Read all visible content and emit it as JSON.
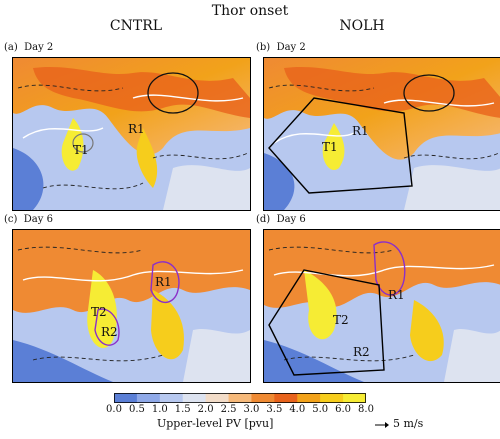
{
  "figure": {
    "title": "Thor onset",
    "columns": [
      "CNTRL",
      "NOLH"
    ],
    "panels": [
      {
        "id": "a",
        "label": "(a)",
        "day": "Day 2",
        "regions": [
          "R1",
          "T1"
        ],
        "box": false
      },
      {
        "id": "b",
        "label": "(b)",
        "day": "Day 2",
        "regions": [
          "R1",
          "T1"
        ],
        "box": true
      },
      {
        "id": "c",
        "label": "(c)",
        "day": "Day 6",
        "regions": [
          "R1",
          "R2",
          "T2"
        ],
        "box": false
      },
      {
        "id": "d",
        "label": "(d)",
        "day": "Day 6",
        "regions": [
          "R1",
          "R2",
          "T2"
        ],
        "box": true
      }
    ]
  },
  "colorbar": {
    "ticks": [
      "0.0",
      "0.5",
      "1.0",
      "1.5",
      "2.0",
      "2.5",
      "3.0",
      "3.5",
      "4.0",
      "5.0",
      "6.0",
      "8.0"
    ],
    "colors": [
      "#5b7fd6",
      "#8fa9e8",
      "#b7c8ef",
      "#dde3f0",
      "#f2dcc8",
      "#f6b97a",
      "#ef8a33",
      "#e8631c",
      "#f2a21a",
      "#f6cd1c",
      "#f6ec34",
      "#6ab04c"
    ],
    "label": "Upper-level PV [pvu]",
    "vector_label": "5 m/s"
  }
}
